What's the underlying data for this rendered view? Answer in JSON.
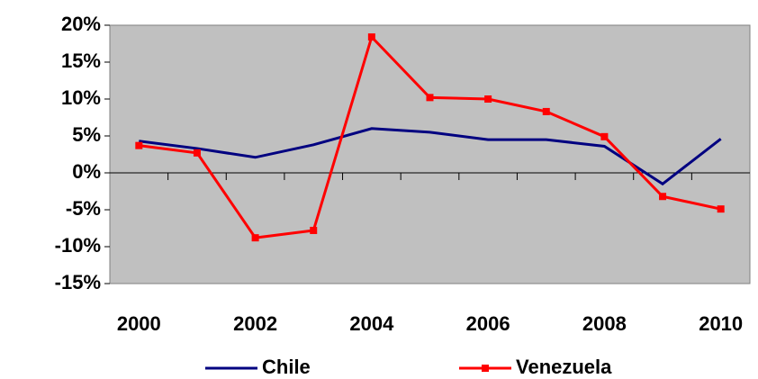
{
  "chart_data": {
    "type": "line",
    "categories": [
      "2000",
      null,
      "2002",
      null,
      "2004",
      null,
      "2006",
      null,
      "2008",
      null,
      "2010"
    ],
    "series": [
      {
        "name": "Chile",
        "color": "#000080",
        "marker": false,
        "values": [
          4.3,
          3.3,
          2.1,
          3.8,
          6.0,
          5.5,
          4.5,
          4.5,
          3.6,
          -1.5,
          4.6
        ]
      },
      {
        "name": "Venezuela",
        "color": "#ff0000",
        "marker": true,
        "values": [
          3.7,
          2.7,
          -8.8,
          -7.8,
          18.4,
          10.2,
          10.0,
          8.3,
          4.9,
          -3.2,
          -4.9
        ]
      }
    ],
    "ylim": [
      -15,
      20
    ],
    "yticks": [
      {
        "value": -15,
        "label": "-15%"
      },
      {
        "value": -10,
        "label": "-10%"
      },
      {
        "value": -5,
        "label": "-5%"
      },
      {
        "value": 0,
        "label": "0%"
      },
      {
        "value": 5,
        "label": "5%"
      },
      {
        "value": 10,
        "label": "10%"
      },
      {
        "value": 15,
        "label": "15%"
      },
      {
        "value": 20,
        "label": "20%"
      }
    ],
    "plot_background": "#c0c0c0",
    "legend": "bottom"
  }
}
